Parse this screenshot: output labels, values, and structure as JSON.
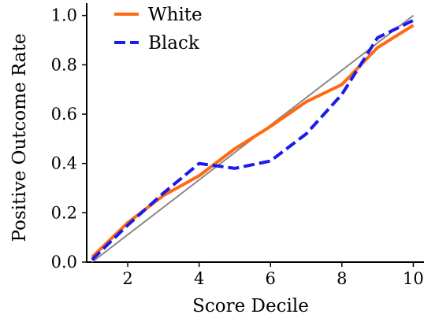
{
  "chart_data": {
    "type": "line",
    "title": "",
    "xlabel": "Score Decile",
    "ylabel": "Positive Outcome Rate",
    "xlim": [
      0.85,
      10.3
    ],
    "ylim": [
      0.0,
      1.05
    ],
    "xticks": [
      "2",
      "4",
      "6",
      "8",
      "10"
    ],
    "yticks": [
      "0.0",
      "0.2",
      "0.4",
      "0.6",
      "0.8",
      "1.0"
    ],
    "grid": false,
    "legend": "top-left",
    "reference_line": {
      "x": [
        1,
        10
      ],
      "y": [
        0.0,
        1.0
      ],
      "color": "#888888"
    },
    "series": [
      {
        "name": "White",
        "color": "#ff6a10",
        "style": "solid",
        "x": [
          1,
          2,
          3,
          4,
          5,
          6,
          7,
          8,
          9,
          10
        ],
        "y": [
          0.02,
          0.16,
          0.27,
          0.35,
          0.46,
          0.55,
          0.65,
          0.72,
          0.87,
          0.96
        ]
      },
      {
        "name": "Black",
        "color": "#1a1aee",
        "style": "dashed",
        "x": [
          1,
          2,
          3,
          4,
          4.5,
          5,
          6,
          7,
          8,
          9,
          10
        ],
        "y": [
          0.01,
          0.15,
          0.28,
          0.4,
          0.39,
          0.38,
          0.41,
          0.52,
          0.68,
          0.91,
          0.98
        ]
      }
    ]
  }
}
